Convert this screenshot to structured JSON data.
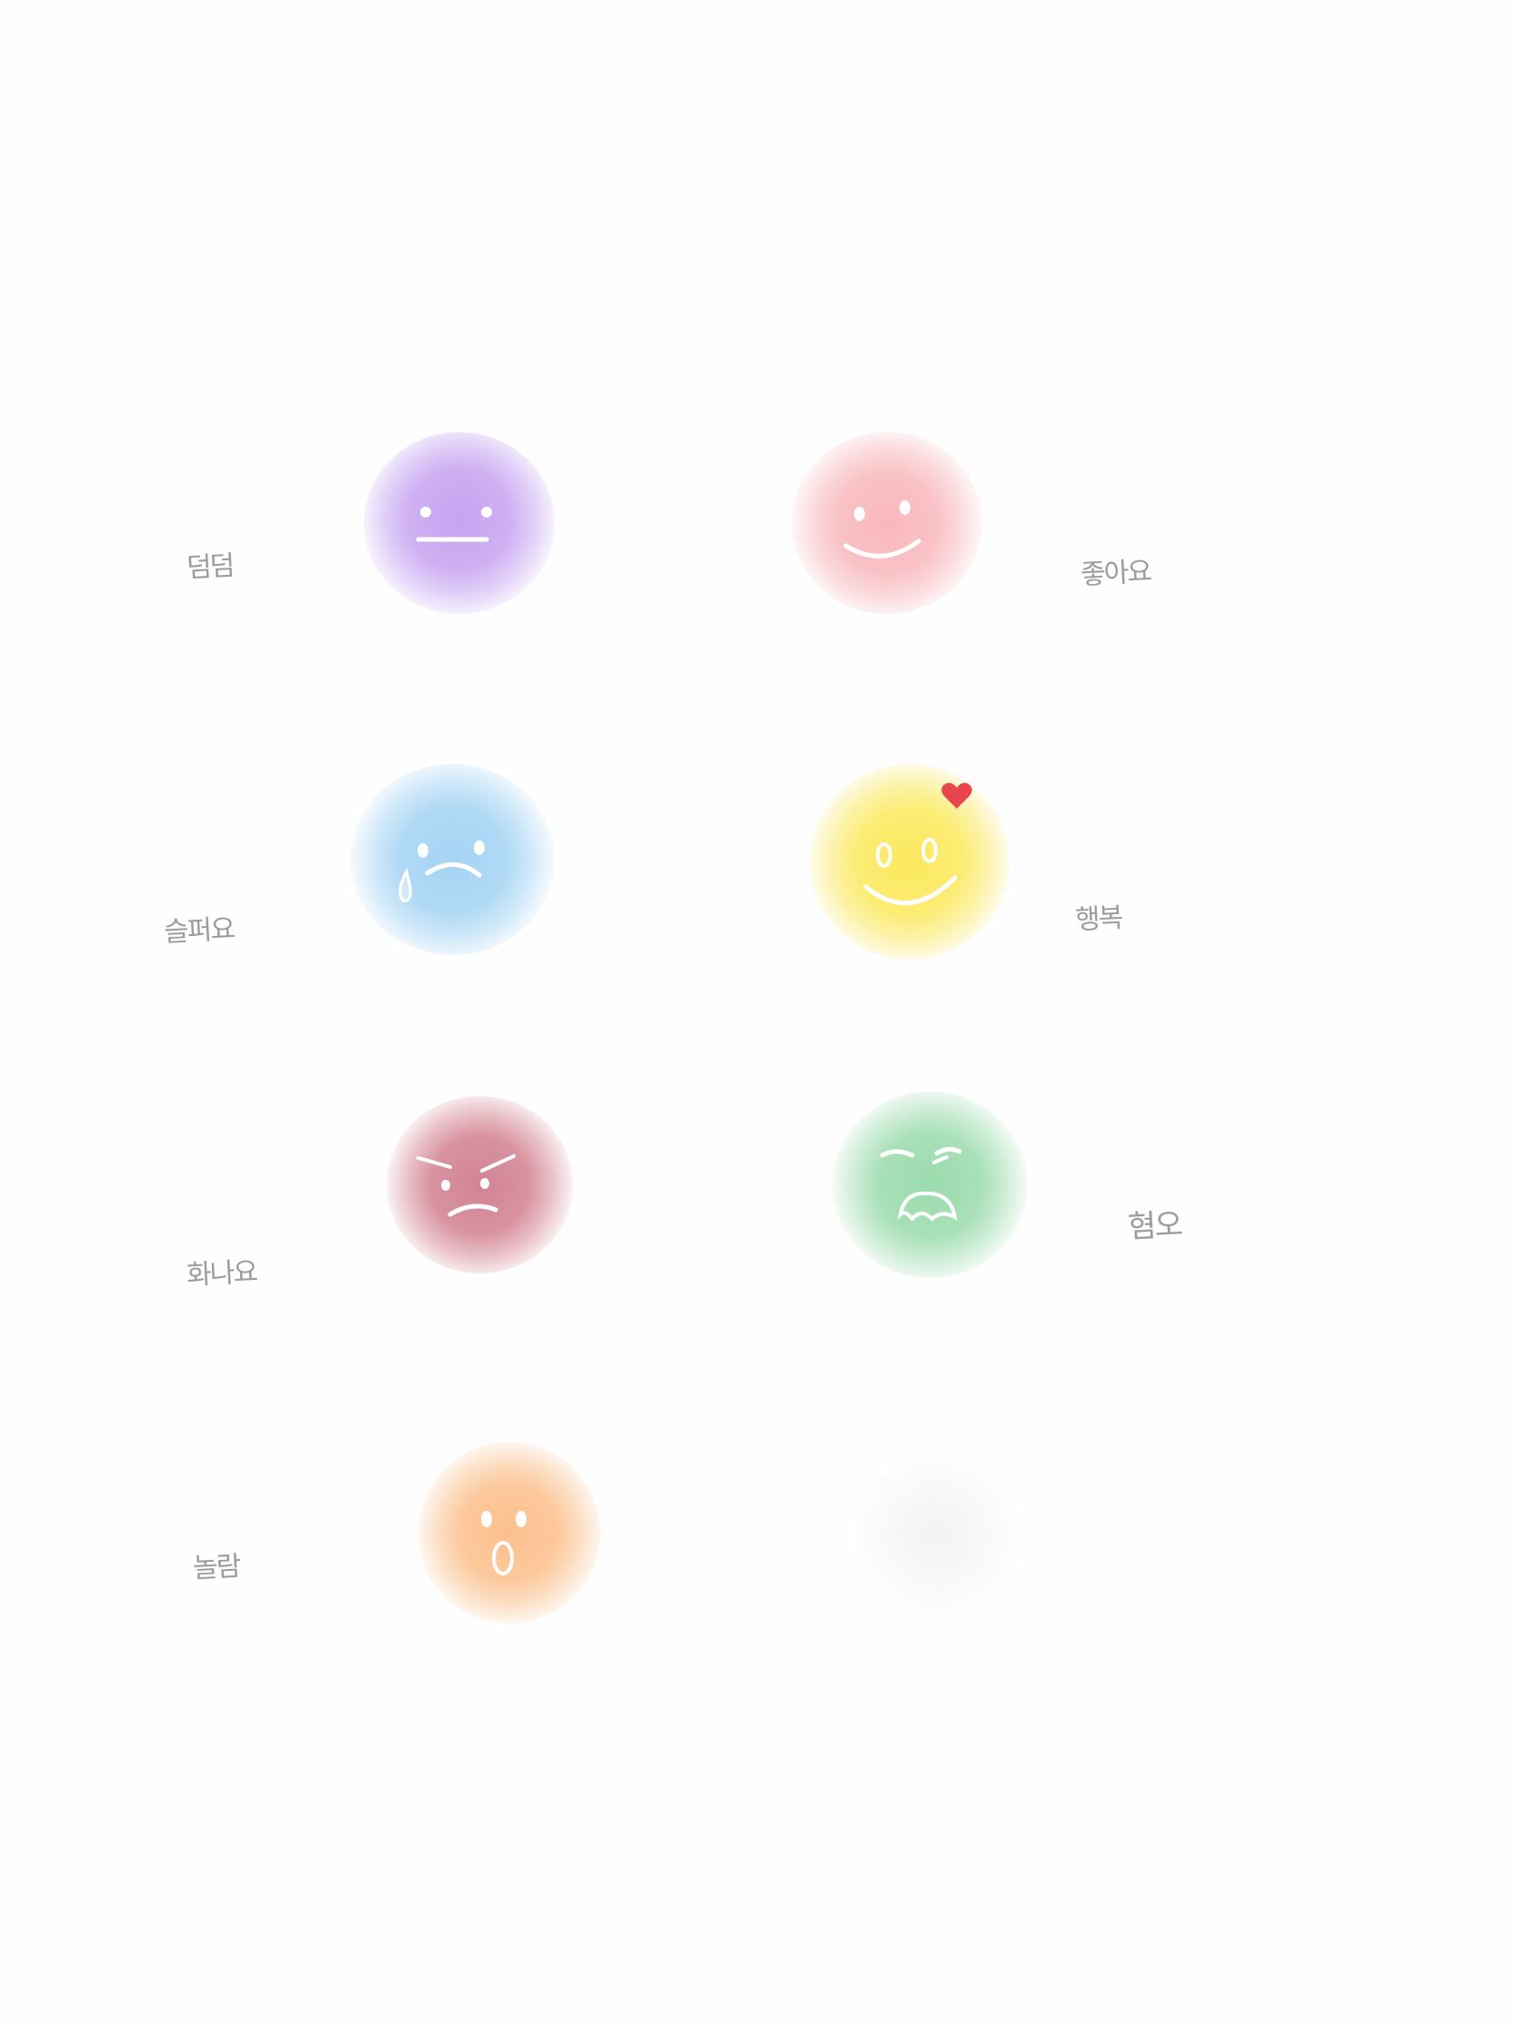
{
  "labels": {
    "calm": "덤덤",
    "like": "좋아요",
    "sad": "슬퍼요",
    "happy": "행복",
    "angry": "화나요",
    "disgust": "혐오",
    "surprised": "놀람"
  },
  "colors": {
    "calm": "#c9a8f0",
    "like": "#f8bcc2",
    "sad": "#a9d6f4",
    "happy": "#fbea6a",
    "angry": "#d88e9c",
    "disgust": "#9fdcb0",
    "surprised": "#fcc798",
    "empty": "#f1f1f1",
    "heart": "#e8454f",
    "face_lines": "#ffffff",
    "label_ink": "#8c8c8c"
  },
  "icons": {
    "calm": "neutral-face-icon",
    "like": "smile-face-icon",
    "sad": "crying-face-icon",
    "happy": "big-smile-face-icon",
    "angry": "angry-face-icon",
    "disgust": "disgust-face-icon",
    "surprised": "surprised-face-icon",
    "heart": "heart-icon"
  }
}
